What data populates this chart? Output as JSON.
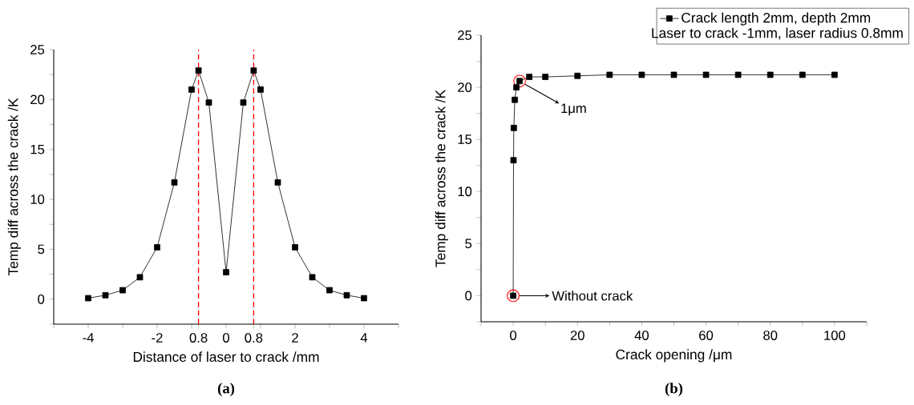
{
  "chart_data": [
    {
      "type": "line",
      "title": "(a)",
      "xlabel": "Distance of laser to crack /mm",
      "ylabel": "Temp diff across the crack /K",
      "x": [
        -4,
        -3.5,
        -3,
        -2.5,
        -2,
        -1.5,
        -1,
        -0.8,
        -0.5,
        0,
        0.5,
        0.8,
        1,
        1.5,
        2,
        2.5,
        3,
        3.5,
        4
      ],
      "series": [
        {
          "color": "#000000",
          "values": [
            0.1,
            0.4,
            0.9,
            2.2,
            5.2,
            11.7,
            21.0,
            22.9,
            19.7,
            2.7,
            19.7,
            22.9,
            21.0,
            11.7,
            5.2,
            2.2,
            0.9,
            0.4,
            0.1
          ]
        }
      ],
      "xlim": [
        -5,
        5
      ],
      "ylim": [
        -2.5,
        25
      ],
      "xticks": [
        {
          "value": -5,
          "label": null
        },
        -4,
        {
          "value": -3,
          "label": null
        },
        -2,
        {
          "value": -1,
          "label": null
        },
        {
          "value": -0.8,
          "label": "0.8"
        },
        0,
        {
          "value": 0.8,
          "label": "0.8"
        },
        {
          "value": 1,
          "label": null
        },
        2,
        {
          "value": 3,
          "label": null
        },
        4,
        {
          "value": 5,
          "label": null
        }
      ],
      "yticks": [
        {
          "value": -2.5,
          "label": null
        },
        0,
        {
          "value": 2.5,
          "label": null
        },
        5,
        {
          "value": 7.5,
          "label": null
        },
        10,
        {
          "value": 12.5,
          "label": null
        },
        15,
        {
          "value": 17.5,
          "label": null
        },
        20,
        {
          "value": 22.5,
          "label": null
        },
        25
      ],
      "ref_lines": [
        {
          "axis": "x",
          "value": -0.8,
          "color": "#ff0000",
          "line_style": "dashed"
        },
        {
          "axis": "x",
          "value": 0.8,
          "color": "#ff0000",
          "line_style": "dashed"
        }
      ],
      "marker": "square",
      "line_style": "solid",
      "grid": false,
      "legend": false
    },
    {
      "type": "line",
      "title": "(b)",
      "xlabel": "Crack opening /μm",
      "ylabel": "Temp diff across the crack /K",
      "x": [
        0,
        0.1,
        0.2,
        0.5,
        1,
        2,
        5,
        10,
        20,
        30,
        40,
        50,
        60,
        70,
        80,
        90,
        100
      ],
      "series": [
        {
          "name": "Crack length 2mm, depth 2mm",
          "color": "#000000",
          "values": [
            0,
            13.0,
            16.1,
            18.8,
            20.0,
            20.6,
            21.0,
            21.0,
            21.1,
            21.2,
            21.2,
            21.2,
            21.2,
            21.2,
            21.2,
            21.2,
            21.2
          ]
        }
      ],
      "xlim": [
        -10,
        110
      ],
      "ylim": [
        -2.5,
        25
      ],
      "xticks": [
        {
          "value": -10,
          "label": null
        },
        0,
        {
          "value": 10,
          "label": null
        },
        20,
        {
          "value": 30,
          "label": null
        },
        40,
        {
          "value": 50,
          "label": null
        },
        60,
        {
          "value": 70,
          "label": null
        },
        80,
        {
          "value": 90,
          "label": null
        },
        100,
        {
          "value": 110,
          "label": null
        }
      ],
      "yticks": [
        {
          "value": -2.5,
          "label": null
        },
        0,
        {
          "value": 2.5,
          "label": null
        },
        5,
        {
          "value": 7.5,
          "label": null
        },
        10,
        {
          "value": 12.5,
          "label": null
        },
        15,
        {
          "value": 17.5,
          "label": null
        },
        20,
        {
          "value": 22.5,
          "label": null
        },
        25
      ],
      "annotations": [
        "Laser to crack -1mm, laser radius 0.8mm",
        {
          "text": "1μm",
          "x": 2,
          "y": 20.6
        },
        {
          "text": "Without crack",
          "x": 0,
          "y": 0
        }
      ],
      "marker": "square",
      "line_style": "solid",
      "grid": false,
      "legend": "top right"
    }
  ]
}
